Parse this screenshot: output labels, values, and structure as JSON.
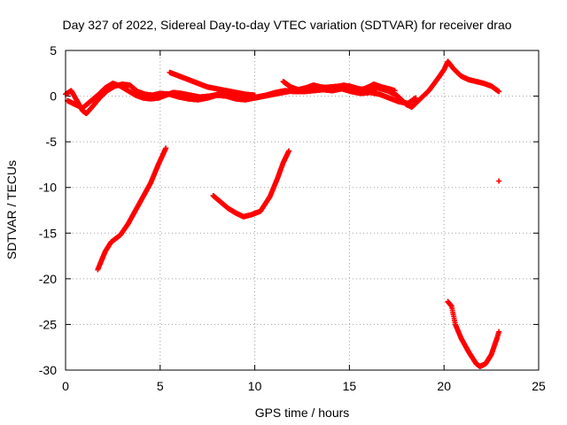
{
  "chart_data": {
    "type": "scatter",
    "title": "Day 327 of 2022, Sidereal Day-to-day VTEC variation (SDTVAR) for receiver drao",
    "xlabel": "GPS time / hours",
    "ylabel": "SDTVAR / TECUs",
    "xlim": [
      0,
      25
    ],
    "ylim": [
      -30,
      5
    ],
    "xticks": [
      0,
      5,
      10,
      15,
      20,
      25
    ],
    "yticks": [
      5,
      0,
      -5,
      -10,
      -15,
      -20,
      -25,
      -30
    ],
    "grid": true,
    "marker": "+",
    "series_color": "#ff0000",
    "series": [
      {
        "name": "arc-near-zero-a",
        "points": [
          [
            0.0,
            0.2
          ],
          [
            0.3,
            0.6
          ],
          [
            0.6,
            -0.5
          ],
          [
            0.9,
            -1.6
          ],
          [
            1.1,
            -1.9
          ],
          [
            1.4,
            -1.2
          ],
          [
            1.8,
            -0.2
          ],
          [
            2.2,
            0.6
          ],
          [
            2.6,
            1.1
          ],
          [
            3.0,
            1.3
          ],
          [
            3.4,
            1.2
          ],
          [
            3.8,
            0.5
          ],
          [
            4.2,
            0.2
          ],
          [
            4.6,
            0.1
          ],
          [
            5.0,
            0.3
          ],
          [
            5.5,
            0.2
          ],
          [
            6.0,
            -0.1
          ],
          [
            6.5,
            -0.3
          ],
          [
            7.0,
            -0.4
          ],
          [
            7.5,
            -0.2
          ],
          [
            8.0,
            0.1
          ],
          [
            8.5,
            0.0
          ],
          [
            9.0,
            -0.3
          ],
          [
            9.5,
            -0.4
          ],
          [
            10.0,
            -0.2
          ],
          [
            10.5,
            0.0
          ],
          [
            11.0,
            0.2
          ],
          [
            11.5,
            0.4
          ],
          [
            12.0,
            0.6
          ],
          [
            12.5,
            0.8
          ],
          [
            13.0,
            0.9
          ],
          [
            13.5,
            0.9
          ],
          [
            14.0,
            1.0
          ],
          [
            14.5,
            1.1
          ],
          [
            15.0,
            1.1
          ],
          [
            15.5,
            0.8
          ],
          [
            16.0,
            0.7
          ],
          [
            16.5,
            0.9
          ],
          [
            17.0,
            0.6
          ],
          [
            17.5,
            0.1
          ],
          [
            18.0,
            -0.9
          ],
          [
            18.3,
            -1.2
          ],
          [
            18.7,
            -0.4
          ],
          [
            19.2,
            0.6
          ],
          [
            19.7,
            2.0
          ],
          [
            20.0,
            2.9
          ],
          [
            20.2,
            3.8
          ],
          [
            20.5,
            3.0
          ],
          [
            20.9,
            2.2
          ],
          [
            21.3,
            1.8
          ],
          [
            21.7,
            1.6
          ],
          [
            22.1,
            1.4
          ],
          [
            22.5,
            1.1
          ],
          [
            22.9,
            0.5
          ]
        ]
      },
      {
        "name": "arc-near-zero-b",
        "points": [
          [
            0.1,
            -0.5
          ],
          [
            0.5,
            -0.9
          ],
          [
            0.9,
            -1.3
          ],
          [
            1.3,
            -0.6
          ],
          [
            1.7,
            0.1
          ],
          [
            2.1,
            0.9
          ],
          [
            2.5,
            1.4
          ],
          [
            2.9,
            1.1
          ],
          [
            3.3,
            0.6
          ],
          [
            3.7,
            0.1
          ],
          [
            4.1,
            -0.2
          ],
          [
            4.5,
            -0.3
          ],
          [
            4.9,
            -0.2
          ],
          [
            5.3,
            0.1
          ],
          [
            5.7,
            0.4
          ],
          [
            6.1,
            0.3
          ],
          [
            6.6,
            0.1
          ],
          [
            7.1,
            -0.1
          ],
          [
            7.6,
            0.0
          ],
          [
            8.1,
            0.2
          ],
          [
            8.6,
            0.3
          ],
          [
            9.1,
            0.2
          ],
          [
            9.6,
            0.0
          ],
          [
            10.1,
            -0.1
          ],
          [
            10.6,
            0.1
          ],
          [
            11.1,
            0.4
          ],
          [
            11.6,
            0.6
          ],
          [
            12.1,
            0.5
          ],
          [
            12.6,
            0.5
          ],
          [
            13.1,
            0.6
          ],
          [
            13.6,
            0.7
          ],
          [
            14.1,
            0.6
          ],
          [
            14.6,
            0.8
          ],
          [
            15.1,
            0.5
          ],
          [
            15.6,
            0.3
          ],
          [
            16.1,
            0.4
          ],
          [
            16.6,
            0.2
          ],
          [
            17.1,
            -0.2
          ],
          [
            17.6,
            -0.6
          ],
          [
            18.1,
            -0.8
          ],
          [
            18.5,
            -0.2
          ]
        ]
      },
      {
        "name": "arc-mid-upper",
        "points": [
          [
            5.5,
            2.6
          ],
          [
            6.0,
            2.2
          ],
          [
            6.5,
            1.8
          ],
          [
            7.0,
            1.4
          ],
          [
            7.5,
            1.0
          ],
          [
            8.0,
            0.8
          ],
          [
            8.5,
            0.6
          ],
          [
            9.0,
            0.4
          ],
          [
            9.5,
            0.2
          ],
          [
            10.0,
            0.1
          ]
        ]
      },
      {
        "name": "arc-mid-blob",
        "points": [
          [
            11.5,
            1.6
          ],
          [
            11.9,
            1.0
          ],
          [
            12.3,
            0.7
          ],
          [
            12.7,
            0.9
          ],
          [
            13.1,
            1.2
          ],
          [
            13.5,
            1.0
          ],
          [
            13.9,
            0.9
          ],
          [
            14.3,
            1.0
          ],
          [
            14.7,
            1.2
          ],
          [
            15.1,
            1.0
          ],
          [
            15.5,
            0.6
          ],
          [
            15.9,
            0.9
          ],
          [
            16.3,
            1.3
          ],
          [
            16.7,
            1.0
          ],
          [
            17.1,
            0.8
          ],
          [
            17.4,
            0.6
          ]
        ]
      },
      {
        "name": "arc-rise-1",
        "points": [
          [
            1.7,
            -19.0
          ],
          [
            1.9,
            -18.0
          ],
          [
            2.1,
            -17.0
          ],
          [
            2.4,
            -16.0
          ],
          [
            2.9,
            -15.2
          ],
          [
            3.3,
            -14.0
          ],
          [
            3.7,
            -12.5
          ],
          [
            4.1,
            -11.0
          ],
          [
            4.5,
            -9.5
          ],
          [
            4.9,
            -7.5
          ],
          [
            5.3,
            -5.7
          ]
        ]
      },
      {
        "name": "arc-dip-2",
        "points": [
          [
            7.8,
            -10.9
          ],
          [
            8.2,
            -11.6
          ],
          [
            8.6,
            -12.3
          ],
          [
            9.0,
            -12.8
          ],
          [
            9.4,
            -13.2
          ],
          [
            9.8,
            -13.0
          ],
          [
            10.3,
            -12.6
          ],
          [
            10.8,
            -11.0
          ],
          [
            11.2,
            -9.0
          ],
          [
            11.5,
            -7.3
          ],
          [
            11.8,
            -6.0
          ]
        ]
      },
      {
        "name": "arc-dip-3",
        "points": [
          [
            20.2,
            -22.5
          ],
          [
            20.4,
            -23.0
          ],
          [
            20.6,
            -25.0
          ],
          [
            20.9,
            -26.5
          ],
          [
            21.3,
            -28.0
          ],
          [
            21.7,
            -29.3
          ],
          [
            21.9,
            -29.6
          ],
          [
            22.2,
            -29.3
          ],
          [
            22.5,
            -28.3
          ],
          [
            22.8,
            -26.5
          ],
          [
            22.9,
            -25.8
          ]
        ]
      },
      {
        "name": "isolated",
        "points": [
          [
            22.9,
            -9.3
          ]
        ]
      }
    ]
  }
}
